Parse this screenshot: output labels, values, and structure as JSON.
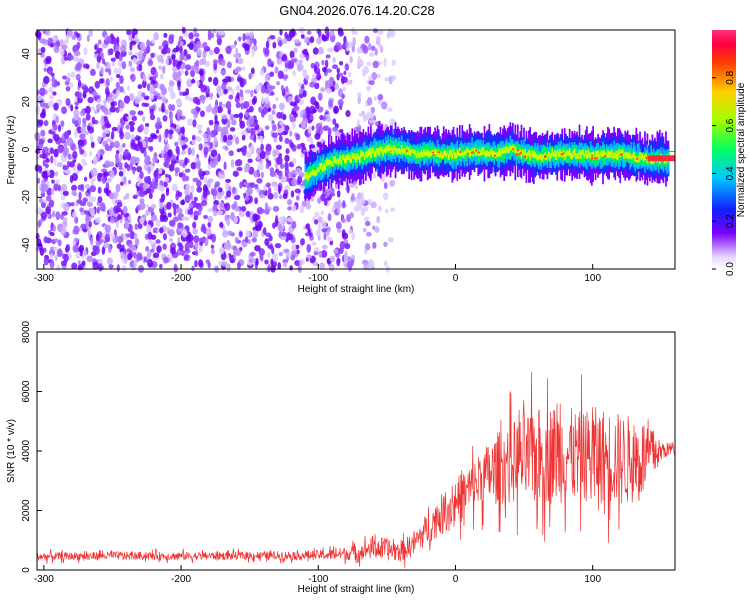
{
  "title": "GN04.2026.076.14.20.C28",
  "chart_data": [
    {
      "type": "heatmap",
      "xlabel": "Height of straight line (km)",
      "ylabel": "Frequency (Hz)",
      "xlim": [
        -305,
        160
      ],
      "ylim": [
        -50,
        50
      ],
      "xticks": [
        -300,
        -200,
        -100,
        0,
        100
      ],
      "yticks": [
        -40,
        -20,
        0,
        20,
        40
      ],
      "colorbar": {
        "label": "Normalized spectral amplitude",
        "range": [
          0,
          1
        ],
        "ticks": [
          0.0,
          0.2,
          0.4,
          0.6,
          0.8
        ]
      },
      "noise_region_km": [
        -305,
        -45
      ],
      "signal_region_km": [
        -110,
        160
      ],
      "signal_track": {
        "x": [
          -110,
          -100,
          -90,
          -80,
          -70,
          -60,
          -50,
          -40,
          -30,
          -20,
          -10,
          0,
          10,
          20,
          30,
          40,
          50,
          60,
          70,
          80,
          90,
          100,
          110,
          120,
          130,
          140,
          150,
          160
        ],
        "y": [
          -12,
          -8,
          -5,
          -4,
          -3,
          -1,
          0,
          0,
          -2,
          -1,
          -2,
          -2,
          -1,
          -1,
          -2,
          0,
          -2,
          -3,
          -2,
          -2,
          -2,
          -3,
          -2,
          -2,
          -3,
          -4,
          -4,
          -4
        ]
      }
    },
    {
      "type": "line",
      "xlabel": "Height of straight line (km)",
      "ylabel": "SNR (10 * v/v)",
      "xlim": [
        -305,
        160
      ],
      "ylim": [
        0,
        8000
      ],
      "xticks": [
        -300,
        -200,
        -100,
        0,
        100
      ],
      "yticks": [
        0,
        2000,
        4000,
        6000,
        8000
      ],
      "series_color": "#ee3333",
      "envelope": {
        "x": [
          -305,
          -250,
          -200,
          -150,
          -100,
          -80,
          -70,
          -60,
          -50,
          -40,
          -30,
          -20,
          -10,
          0,
          10,
          20,
          30,
          40,
          50,
          60,
          70,
          80,
          90,
          100,
          110,
          120,
          130,
          140,
          150,
          160
        ],
        "mean": [
          450,
          480,
          470,
          480,
          500,
          550,
          600,
          750,
          700,
          600,
          900,
          1400,
          1900,
          2300,
          2700,
          3100,
          3400,
          3600,
          3700,
          3800,
          3900,
          3900,
          3800,
          3900,
          3800,
          3700,
          3700,
          3800,
          4000,
          4100
        ],
        "spread": [
          250,
          250,
          250,
          250,
          300,
          400,
          500,
          700,
          700,
          600,
          800,
          1000,
          1200,
          1400,
          1600,
          1800,
          2200,
          2500,
          2800,
          3000,
          3100,
          3000,
          2800,
          2900,
          3000,
          2900,
          2700,
          2400,
          500,
          400
        ]
      }
    }
  ]
}
